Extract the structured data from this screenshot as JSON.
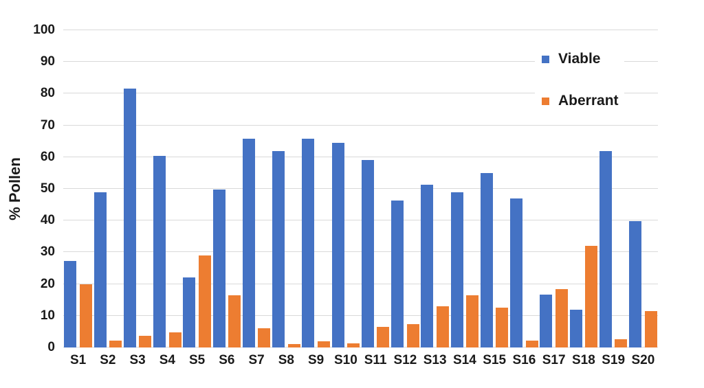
{
  "chart_data": {
    "type": "bar",
    "title": "",
    "xlabel": "",
    "ylabel": "% Pollen",
    "ylim": [
      0,
      100
    ],
    "y_tick_step": 10,
    "grid": true,
    "legend_position": "top-right",
    "categories": [
      "S1",
      "S2",
      "S3",
      "S4",
      "S5",
      "S6",
      "S7",
      "S8",
      "S9",
      "S10",
      "S11",
      "S12",
      "S13",
      "S14",
      "S15",
      "S16",
      "S17",
      "S18",
      "S19",
      "S20"
    ],
    "series": [
      {
        "name": "Viable",
        "color": "#4472C4",
        "values": [
          27.3,
          49,
          81.5,
          60.5,
          22,
          49.8,
          65.8,
          62,
          65.8,
          64.6,
          59,
          46.4,
          51.3,
          48.9,
          55,
          47,
          16.7,
          11.8,
          62,
          39.8
        ]
      },
      {
        "name": "Aberrant",
        "color": "#ED7D31",
        "values": [
          20,
          2.2,
          3.7,
          4.7,
          29,
          16.4,
          6,
          1,
          2,
          1.3,
          6.5,
          7.3,
          13,
          16.5,
          12.5,
          2.2,
          18.5,
          32,
          2.5,
          11.5
        ]
      }
    ]
  },
  "colors": {
    "gridline": "#d9d9d9",
    "text": "#1a1a1a",
    "background": "#ffffff"
  }
}
